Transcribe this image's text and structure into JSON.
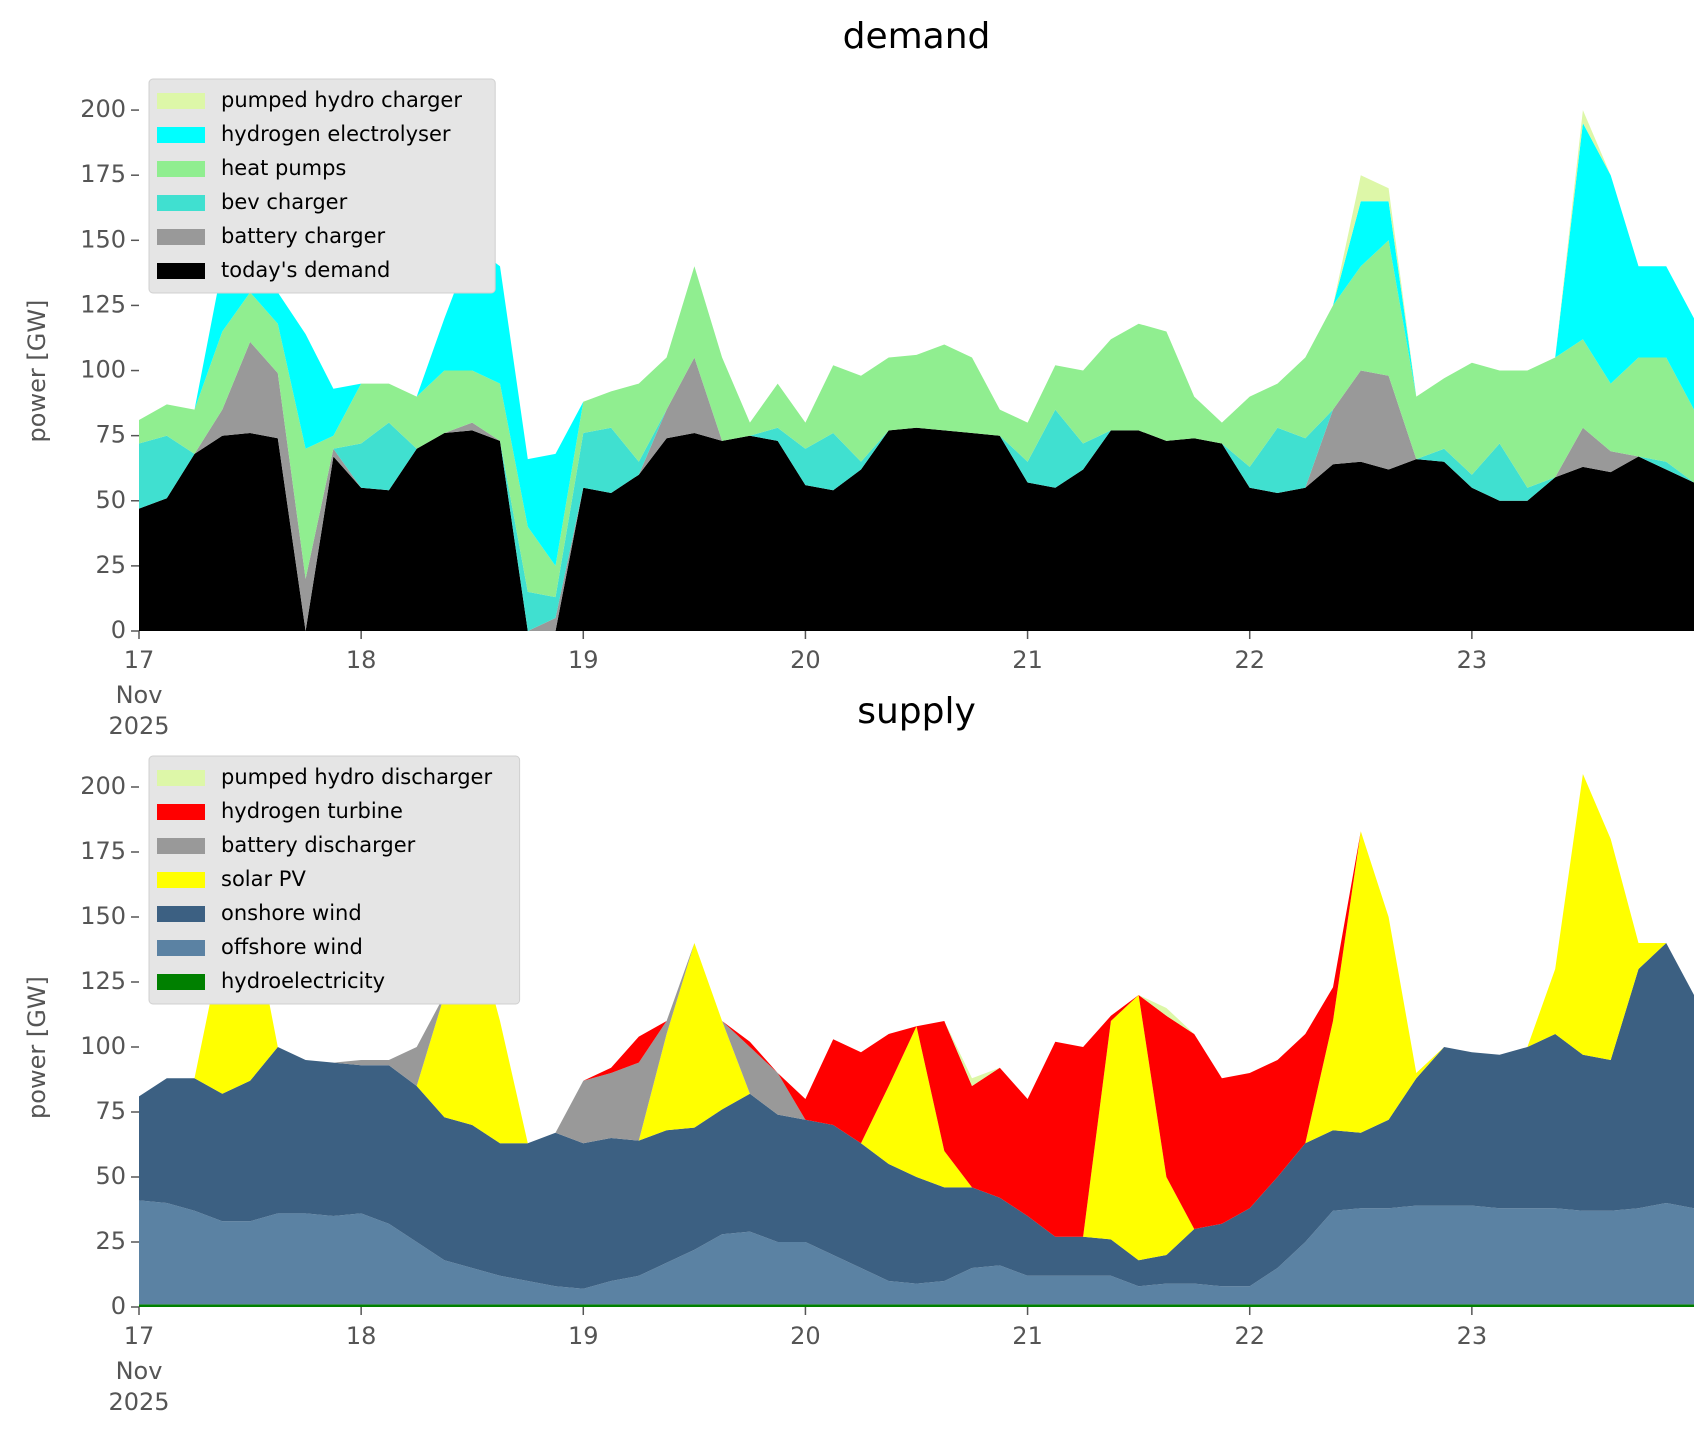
{
  "chart_data": [
    {
      "type": "stacked_area",
      "title": "demand",
      "ylabel": "power [GW]",
      "legend": "upper left",
      "x": [
        17,
        17.125,
        17.25,
        17.375,
        17.5,
        17.625,
        17.75,
        17.875,
        18,
        18.125,
        18.25,
        18.375,
        18.5,
        18.625,
        18.75,
        18.875,
        19,
        19.125,
        19.25,
        19.375,
        19.5,
        19.625,
        19.75,
        19.875,
        20,
        20.125,
        20.25,
        20.375,
        20.5,
        20.625,
        20.75,
        20.875,
        21,
        21.125,
        21.25,
        21.375,
        21.5,
        21.625,
        21.75,
        21.875,
        22,
        22.125,
        22.25,
        22.375,
        22.5,
        22.625,
        22.75,
        22.875,
        23,
        23.125,
        23.25,
        23.375,
        23.5,
        23.625,
        23.75,
        23.875,
        24
      ],
      "xlim": [
        17,
        24
      ],
      "xticks": [
        17,
        18,
        19,
        20,
        21,
        22,
        23
      ],
      "xtick_month": "Nov",
      "xtick_year": "2025",
      "ylim": [
        0,
        215
      ],
      "yticks": [
        0,
        25,
        50,
        75,
        100,
        125,
        150,
        175,
        200
      ],
      "series": [
        {
          "name": "today's demand",
          "color": "#000000",
          "values": [
            47,
            51,
            68,
            75,
            76,
            74,
            0,
            67,
            55,
            54,
            70,
            76,
            77,
            73,
            0,
            0,
            55,
            53,
            60,
            74,
            76,
            73,
            75,
            73,
            56,
            54,
            62,
            77,
            78,
            77,
            76,
            75,
            57,
            55,
            62,
            77,
            77,
            73,
            74,
            72,
            55,
            53,
            55,
            64,
            65,
            62,
            66,
            65,
            55,
            50,
            50,
            59,
            63,
            61,
            67,
            62,
            57
          ]
        },
        {
          "name": "battery charger",
          "color": "#999999",
          "values": [
            0,
            0,
            0,
            10,
            35,
            25,
            20,
            3,
            0,
            0,
            0,
            0,
            3,
            0,
            0,
            5,
            0,
            0,
            0,
            11,
            29,
            0,
            0,
            0,
            0,
            0,
            0,
            0,
            0,
            0,
            0,
            0,
            0,
            0,
            0,
            0,
            0,
            0,
            0,
            0,
            0,
            0,
            0,
            21,
            35,
            36,
            0,
            0,
            0,
            0,
            0,
            0,
            15,
            8,
            0,
            0,
            0
          ]
        },
        {
          "name": "bev charger",
          "color": "#40e0d0",
          "values": [
            25,
            24,
            0,
            0,
            0,
            0,
            0,
            0,
            17,
            26,
            0,
            0,
            0,
            0,
            15,
            8,
            21,
            25,
            5,
            0,
            0,
            0,
            0,
            5,
            14,
            22,
            3,
            0,
            0,
            0,
            0,
            0,
            8,
            30,
            10,
            0,
            0,
            0,
            0,
            0,
            8,
            25,
            19,
            0,
            0,
            0,
            0,
            5,
            5,
            22,
            5,
            0,
            0,
            0,
            0,
            3,
            0
          ]
        },
        {
          "name": "heat pumps",
          "color": "#90ee90",
          "values": [
            9,
            12,
            17,
            30,
            19,
            19,
            50,
            5,
            23,
            15,
            20,
            24,
            20,
            22,
            25,
            12,
            12,
            14,
            30,
            20,
            35,
            32,
            5,
            17,
            10,
            26,
            33,
            28,
            28,
            33,
            29,
            10,
            15,
            17,
            28,
            35,
            41,
            42,
            16,
            8,
            27,
            17,
            31,
            40,
            40,
            52,
            24,
            27,
            43,
            28,
            45,
            46,
            34,
            26,
            38,
            40,
            28
          ]
        },
        {
          "name": "hydrogen electrolyser",
          "color": "#00ffff",
          "values": [
            0,
            0,
            0,
            25,
            25,
            12,
            44,
            18,
            0,
            0,
            0,
            20,
            48,
            45,
            26,
            43,
            0,
            0,
            0,
            0,
            0,
            0,
            0,
            0,
            0,
            0,
            0,
            0,
            0,
            0,
            0,
            0,
            0,
            0,
            0,
            0,
            0,
            0,
            0,
            0,
            0,
            0,
            0,
            0,
            25,
            15,
            0,
            0,
            0,
            0,
            0,
            0,
            83,
            80,
            35,
            35,
            35
          ]
        },
        {
          "name": "pumped hydro charger",
          "color": "#ddf7a8",
          "values": [
            0,
            0,
            0,
            0,
            0,
            0,
            0,
            0,
            0,
            0,
            0,
            0,
            0,
            0,
            0,
            0,
            0,
            0,
            0,
            0,
            0,
            0,
            0,
            0,
            0,
            0,
            0,
            0,
            0,
            0,
            0,
            0,
            0,
            0,
            0,
            0,
            0,
            0,
            0,
            0,
            0,
            0,
            0,
            0,
            10,
            5,
            0,
            0,
            0,
            0,
            0,
            0,
            5,
            0,
            0,
            0,
            0
          ]
        }
      ]
    },
    {
      "type": "stacked_area",
      "title": "supply",
      "ylabel": "power [GW]",
      "legend": "upper left",
      "x": [
        17,
        17.125,
        17.25,
        17.375,
        17.5,
        17.625,
        17.75,
        17.875,
        18,
        18.125,
        18.25,
        18.375,
        18.5,
        18.625,
        18.75,
        18.875,
        19,
        19.125,
        19.25,
        19.375,
        19.5,
        19.625,
        19.75,
        19.875,
        20,
        20.125,
        20.25,
        20.375,
        20.5,
        20.625,
        20.75,
        20.875,
        21,
        21.125,
        21.25,
        21.375,
        21.5,
        21.625,
        21.75,
        21.875,
        22,
        22.125,
        22.25,
        22.375,
        22.5,
        22.625,
        22.75,
        22.875,
        23,
        23.125,
        23.25,
        23.375,
        23.5,
        23.625,
        23.75,
        23.875,
        24
      ],
      "xlim": [
        17,
        24
      ],
      "xticks": [
        17,
        18,
        19,
        20,
        21,
        22,
        23
      ],
      "xtick_month": "Nov",
      "xtick_year": "2025",
      "ylim": [
        0,
        215
      ],
      "yticks": [
        0,
        25,
        50,
        75,
        100,
        125,
        150,
        175,
        200
      ],
      "series": [
        {
          "name": "hydroelectricity",
          "color": "#008000",
          "values": [
            1,
            1,
            1,
            1,
            1,
            1,
            1,
            1,
            1,
            1,
            1,
            1,
            1,
            1,
            1,
            1,
            1,
            1,
            1,
            1,
            1,
            1,
            1,
            1,
            1,
            1,
            1,
            1,
            1,
            1,
            1,
            1,
            1,
            1,
            1,
            1,
            1,
            1,
            1,
            1,
            1,
            1,
            1,
            1,
            1,
            1,
            1,
            1,
            1,
            1,
            1,
            1,
            1,
            1,
            1,
            1,
            1
          ]
        },
        {
          "name": "offshore wind",
          "color": "#5b82a3",
          "values": [
            40,
            39,
            36,
            32,
            32,
            35,
            35,
            34,
            35,
            31,
            24,
            17,
            14,
            11,
            9,
            7,
            6,
            9,
            11,
            16,
            21,
            27,
            28,
            24,
            24,
            19,
            14,
            9,
            8,
            9,
            14,
            15,
            11,
            11,
            11,
            11,
            7,
            8,
            8,
            7,
            7,
            14,
            24,
            36,
            37,
            37,
            38,
            38,
            38,
            37,
            37,
            37,
            36,
            36,
            37,
            39,
            37
          ]
        },
        {
          "name": "onshore wind",
          "color": "#3c6082",
          "values": [
            40,
            48,
            51,
            49,
            54,
            64,
            59,
            59,
            57,
            61,
            60,
            55,
            55,
            51,
            53,
            59,
            56,
            55,
            52,
            51,
            47,
            48,
            53,
            49,
            47,
            50,
            48,
            45,
            41,
            36,
            31,
            26,
            23,
            15,
            15,
            14,
            10,
            11,
            21,
            24,
            30,
            35,
            38,
            31,
            29,
            34,
            49,
            61,
            59,
            59,
            62,
            67,
            60,
            58,
            92,
            100,
            82
          ]
        },
        {
          "name": "solar PV",
          "color": "#ffff00",
          "values": [
            0,
            0,
            0,
            58,
            68,
            0,
            0,
            0,
            0,
            0,
            0,
            47,
            80,
            47,
            0,
            0,
            0,
            0,
            0,
            37,
            71,
            34,
            0,
            0,
            0,
            0,
            0,
            30,
            58,
            14,
            0,
            0,
            0,
            0,
            0,
            84,
            102,
            30,
            0,
            0,
            0,
            0,
            0,
            42,
            116,
            78,
            2,
            0,
            0,
            0,
            0,
            25,
            108,
            85,
            10,
            0,
            0
          ]
        },
        {
          "name": "battery discharger",
          "color": "#999999",
          "values": [
            0,
            0,
            0,
            0,
            0,
            0,
            0,
            0,
            2,
            2,
            15,
            0,
            0,
            0,
            0,
            0,
            24,
            25,
            30,
            5,
            0,
            0,
            18,
            16,
            0,
            0,
            0,
            0,
            0,
            0,
            0,
            0,
            0,
            0,
            0,
            0,
            0,
            0,
            0,
            0,
            0,
            0,
            0,
            0,
            0,
            0,
            0,
            0,
            0,
            0,
            0,
            0,
            0,
            0,
            0,
            0,
            0
          ]
        },
        {
          "name": "hydrogen turbine",
          "color": "#ff0000",
          "values": [
            0,
            0,
            0,
            0,
            0,
            0,
            0,
            0,
            0,
            0,
            0,
            0,
            0,
            0,
            0,
            0,
            0,
            2,
            10,
            0,
            0,
            0,
            2,
            0,
            8,
            33,
            35,
            20,
            0,
            50,
            39,
            50,
            45,
            75,
            73,
            2,
            0,
            62,
            75,
            56,
            52,
            45,
            42,
            13,
            0,
            0,
            0,
            0,
            0,
            0,
            0,
            0,
            0,
            0,
            0,
            0,
            0
          ]
        },
        {
          "name": "pumped hydro discharger",
          "color": "#ddf7a8",
          "values": [
            0,
            0,
            0,
            0,
            0,
            0,
            0,
            0,
            0,
            0,
            0,
            0,
            0,
            0,
            0,
            0,
            0,
            0,
            0,
            0,
            0,
            0,
            0,
            0,
            0,
            0,
            0,
            0,
            0,
            0,
            3,
            0,
            0,
            0,
            0,
            0,
            0,
            3,
            0,
            0,
            0,
            0,
            0,
            0,
            0,
            0,
            0,
            0,
            0,
            0,
            0,
            0,
            0,
            0,
            0,
            0,
            0
          ]
        }
      ]
    }
  ]
}
